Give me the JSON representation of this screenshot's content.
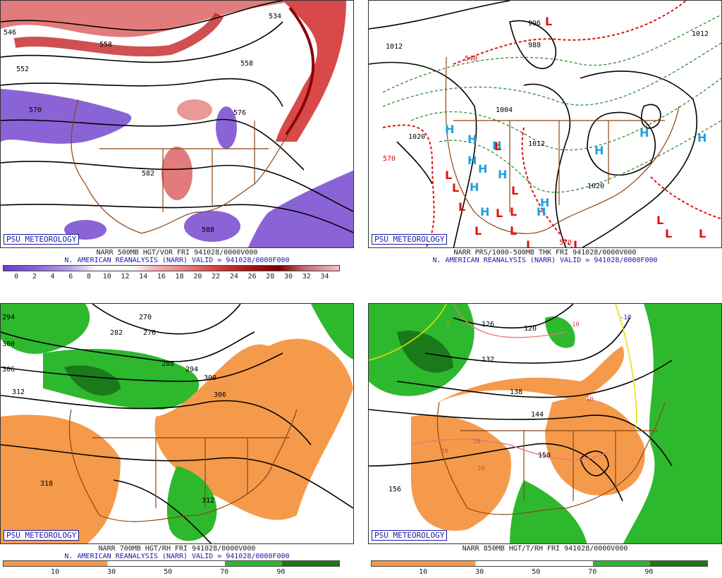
{
  "badge": "PSU METEOROLOGY",
  "panels": {
    "p500": {
      "caption_line1": "NARR 500MB HGT/VOR FRI 941028/0000V000",
      "caption_line2": "N. AMERICAN REANALYSIS (NARR) VALID = 941028/0000F000",
      "colorbar_labels": [
        "0",
        "2",
        "4",
        "6",
        "8",
        "10",
        "12",
        "14",
        "16",
        "18",
        "20",
        "22",
        "24",
        "26",
        "28",
        "30",
        "32",
        "34"
      ],
      "contour_labels": [
        "546",
        "552",
        "534",
        "558",
        "558",
        "570",
        "576",
        "582",
        "588"
      ]
    },
    "pthk": {
      "caption_line1": "NARR PRS/1000-500MB THK FRI 941028/0000V000",
      "caption_line2": "N. AMERICAN REANALYSIS (NARR) VALID = 941028/0000F000",
      "isobar_labels": [
        "1012",
        "996",
        "988",
        "1004",
        "1012",
        "1020",
        "1020",
        "1012"
      ],
      "thickness_labels": [
        "540",
        "570",
        "570"
      ],
      "high_symbol": "H",
      "low_symbol": "L"
    },
    "p700": {
      "caption_line1": "NARR 700MB HGT/RH FRI 941028/0000V000",
      "caption_line2": "N. AMERICAN REANALYSIS (NARR) VALID = 941028/0000F000",
      "colorbar_labels": [
        "10",
        "30",
        "50",
        "70",
        "90"
      ],
      "contour_labels": [
        "294",
        "300",
        "270",
        "282",
        "276",
        "288",
        "294",
        "300",
        "306",
        "312",
        "318",
        "306",
        "312"
      ]
    },
    "p850": {
      "caption_line1": "NARR 850MB HGT/T/RH FRI 941028/0000V000",
      "colorbar_labels": [
        "10",
        "30",
        "50",
        "70",
        "90"
      ],
      "contour_labels": [
        "126",
        "120",
        "132",
        "138",
        "144",
        "150",
        "156"
      ],
      "isotherm_labels": [
        "0",
        "10",
        "-10",
        "10",
        "20",
        "20",
        "20",
        "0"
      ]
    }
  },
  "colors": {
    "rh_dry": "#f59a4a",
    "rh_moist": "#2eb82e",
    "rh_moist_dark": "#1a7a1a",
    "map_border": "#8b4513",
    "high": "#1fa0e0",
    "low": "#e01010",
    "caption_blue": "#1a1aa8"
  }
}
